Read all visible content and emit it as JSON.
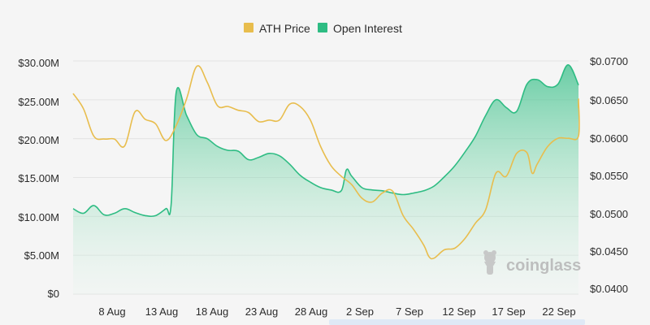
{
  "chart_data": {
    "type": "area",
    "title": "",
    "x_categories": [
      "8 Aug",
      "13 Aug",
      "18 Aug",
      "23 Aug",
      "28 Aug",
      "2 Sep",
      "7 Sep",
      "12 Sep",
      "17 Sep",
      "22 Sep"
    ],
    "x_range_days": [
      4,
      52
    ],
    "x_tick_days": [
      8,
      13,
      18,
      23,
      28,
      33,
      38,
      43,
      48,
      53
    ],
    "y_left": {
      "label": "",
      "ticks": [
        "$0",
        "$5.00M",
        "$10.00M",
        "$15.00M",
        "$20.00M",
        "$25.00M",
        "$30.00M"
      ],
      "range": [
        0,
        30000000
      ]
    },
    "y_right": {
      "label": "",
      "ticks": [
        "$0.0400",
        "$0.0450",
        "$0.0500",
        "$0.0550",
        "$0.0600",
        "$0.0650",
        "$0.0700"
      ],
      "range": [
        0.04,
        0.07
      ]
    },
    "grid": true,
    "legend": {
      "placement": "top-center"
    },
    "series": [
      {
        "name": "ATH Price",
        "axis": "right",
        "color": "#e8bd4d",
        "points": [
          [
            4.0,
            0.0657
          ],
          [
            5.0,
            0.0637
          ],
          [
            6.0,
            0.0601
          ],
          [
            7.0,
            0.0597
          ],
          [
            8.0,
            0.0597
          ],
          [
            9.0,
            0.0588
          ],
          [
            10.0,
            0.0633
          ],
          [
            11.0,
            0.0623
          ],
          [
            12.0,
            0.0617
          ],
          [
            13.0,
            0.0595
          ],
          [
            14.0,
            0.0615
          ],
          [
            15.0,
            0.065
          ],
          [
            16.0,
            0.0693
          ],
          [
            17.0,
            0.0672
          ],
          [
            18.0,
            0.0641
          ],
          [
            19.0,
            0.064
          ],
          [
            20.0,
            0.0635
          ],
          [
            21.0,
            0.0632
          ],
          [
            22.0,
            0.062
          ],
          [
            23.0,
            0.0622
          ],
          [
            24.0,
            0.0622
          ],
          [
            25.0,
            0.0643
          ],
          [
            26.0,
            0.064
          ],
          [
            27.0,
            0.0622
          ],
          [
            28.0,
            0.0587
          ],
          [
            29.0,
            0.0562
          ],
          [
            30.0,
            0.0548
          ],
          [
            31.0,
            0.0537
          ],
          [
            32.0,
            0.0519
          ],
          [
            33.0,
            0.0514
          ],
          [
            34.0,
            0.0526
          ],
          [
            35.0,
            0.0528
          ],
          [
            36.0,
            0.0496
          ],
          [
            37.0,
            0.0478
          ],
          [
            38.0,
            0.0457
          ],
          [
            38.5,
            0.0442
          ],
          [
            39.0,
            0.044
          ],
          [
            40.0,
            0.0451
          ],
          [
            41.0,
            0.0453
          ],
          [
            42.0,
            0.0466
          ],
          [
            43.0,
            0.0486
          ],
          [
            44.0,
            0.0504
          ],
          [
            45.0,
            0.0552
          ],
          [
            46.0,
            0.0548
          ],
          [
            47.0,
            0.0578
          ],
          [
            48.0,
            0.0579
          ],
          [
            48.5,
            0.0552
          ],
          [
            49.0,
            0.0564
          ],
          [
            50.0,
            0.0587
          ],
          [
            51.0,
            0.0598
          ],
          [
            52.0,
            0.0598
          ],
          [
            53.0,
            0.0601
          ],
          [
            54.0,
            0.0648
          ],
          [
            55.0,
            0.0638
          ]
        ]
      },
      {
        "name": "Open Interest",
        "axis": "left",
        "color": "#2ebc83",
        "points": [
          [
            4.0,
            11000000
          ],
          [
            5.0,
            10400000
          ],
          [
            6.0,
            11400000
          ],
          [
            7.0,
            10200000
          ],
          [
            8.0,
            10400000
          ],
          [
            9.0,
            11000000
          ],
          [
            10.0,
            10500000
          ],
          [
            11.0,
            10100000
          ],
          [
            12.0,
            10100000
          ],
          [
            13.0,
            11000000
          ],
          [
            13.5,
            11500000
          ],
          [
            14.0,
            26000000
          ],
          [
            15.0,
            23000000
          ],
          [
            16.0,
            20500000
          ],
          [
            17.0,
            20000000
          ],
          [
            18.0,
            19000000
          ],
          [
            19.0,
            18500000
          ],
          [
            20.0,
            18400000
          ],
          [
            21.0,
            17300000
          ],
          [
            22.0,
            17600000
          ],
          [
            23.0,
            18100000
          ],
          [
            24.0,
            17800000
          ],
          [
            25.0,
            16700000
          ],
          [
            26.0,
            15300000
          ],
          [
            27.0,
            14400000
          ],
          [
            28.0,
            13700000
          ],
          [
            29.0,
            13400000
          ],
          [
            30.0,
            13300000
          ],
          [
            30.5,
            16000000
          ],
          [
            31.0,
            15200000
          ],
          [
            32.0,
            13700000
          ],
          [
            33.0,
            13400000
          ],
          [
            34.0,
            13300000
          ],
          [
            35.0,
            13000000
          ],
          [
            36.0,
            12800000
          ],
          [
            37.0,
            13000000
          ],
          [
            38.0,
            13300000
          ],
          [
            39.0,
            13900000
          ],
          [
            40.0,
            15100000
          ],
          [
            41.0,
            16500000
          ],
          [
            42.0,
            18300000
          ],
          [
            43.0,
            20300000
          ],
          [
            44.0,
            23000000
          ],
          [
            45.0,
            25000000
          ],
          [
            46.0,
            24000000
          ],
          [
            47.0,
            23500000
          ],
          [
            48.0,
            27000000
          ],
          [
            49.0,
            27600000
          ],
          [
            50.0,
            26700000
          ],
          [
            51.0,
            27000000
          ],
          [
            52.0,
            29500000
          ],
          [
            53.0,
            26900000
          ]
        ]
      }
    ]
  },
  "watermark": {
    "text": "coinglass"
  }
}
